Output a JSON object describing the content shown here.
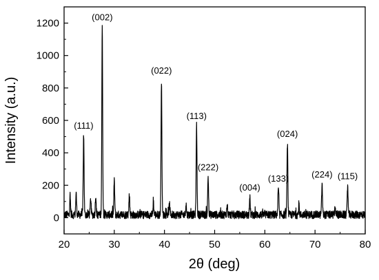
{
  "chart_data": {
    "type": "line",
    "xlabel": "2θ (deg)",
    "ylabel": "Intensity (a.u.)",
    "xlim": [
      20,
      80
    ],
    "ylim": [
      -100,
      1300
    ],
    "xticks": [
      20,
      30,
      40,
      50,
      60,
      70,
      80
    ],
    "yticks": [
      0,
      200,
      400,
      600,
      800,
      1000,
      1200
    ],
    "grid": false,
    "line_color": "#000000",
    "background_noise": 35,
    "peaks": [
      {
        "x": 23.9,
        "y": 510,
        "label": "(111)"
      },
      {
        "x": 27.6,
        "y": 1180,
        "label": "(002)"
      },
      {
        "x": 39.4,
        "y": 850,
        "label": "(022)"
      },
      {
        "x": 46.4,
        "y": 570,
        "label": "(113)"
      },
      {
        "x": 48.7,
        "y": 255,
        "label": "(222)"
      },
      {
        "x": 57.0,
        "y": 130,
        "label": "(004)"
      },
      {
        "x": 62.7,
        "y": 185,
        "label": "(133)"
      },
      {
        "x": 64.5,
        "y": 460,
        "label": "(024)"
      },
      {
        "x": 71.4,
        "y": 210,
        "label": "(224)"
      },
      {
        "x": 76.5,
        "y": 200,
        "label": "(115)"
      }
    ],
    "minor_peaks": [
      {
        "x": 21.2,
        "y": 130
      },
      {
        "x": 22.4,
        "y": 150
      },
      {
        "x": 25.3,
        "y": 120
      },
      {
        "x": 26.3,
        "y": 140
      },
      {
        "x": 30.0,
        "y": 230
      },
      {
        "x": 33.0,
        "y": 145
      },
      {
        "x": 37.8,
        "y": 95
      },
      {
        "x": 41.0,
        "y": 90
      },
      {
        "x": 44.3,
        "y": 85
      },
      {
        "x": 52.5,
        "y": 80
      },
      {
        "x": 66.8,
        "y": 75
      },
      {
        "x": 74.0,
        "y": 70
      }
    ]
  }
}
